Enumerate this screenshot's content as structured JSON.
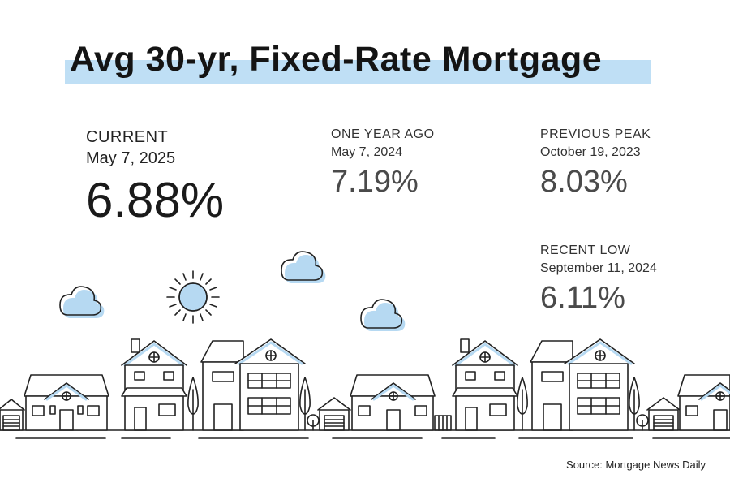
{
  "title": "Avg 30-yr, Fixed-Rate Mortgage",
  "current": {
    "label": "CURRENT",
    "date": "May 7, 2025",
    "value": "6.88%"
  },
  "one_year_ago": {
    "label": "ONE YEAR AGO",
    "date": "May 7, 2024",
    "value": "7.19%"
  },
  "previous_peak": {
    "label": "PREVIOUS PEAK",
    "date": "October 19, 2023",
    "value": "8.03%"
  },
  "recent_low": {
    "label": "RECENT LOW",
    "date": "September 11, 2024",
    "value": "6.11%"
  },
  "source": "Source: Mortgage News Daily",
  "colors": {
    "accent_blue": "#bfdff5",
    "cloud_blue": "#b6d9f2",
    "line": "#222222"
  },
  "icons": [
    "sun-icon",
    "cloud-icon",
    "house-icon",
    "tree-icon"
  ]
}
